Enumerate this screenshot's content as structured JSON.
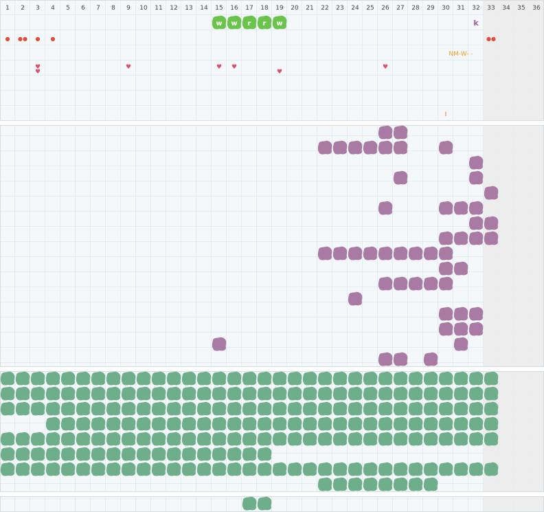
{
  "columns": [
    "1",
    "2",
    "3",
    "4",
    "5",
    "6",
    "7",
    "8",
    "9",
    "10",
    "11",
    "12",
    "13",
    "14",
    "15",
    "16",
    "17",
    "18",
    "19",
    "20",
    "21",
    "22",
    "23",
    "24",
    "25",
    "26",
    "27",
    "28",
    "29",
    "30",
    "31",
    "32",
    "33",
    "34",
    "35",
    "36"
  ],
  "active_columns": 32,
  "colors": {
    "page": "#ffffff",
    "cell_fill": "#f4f8fa",
    "grid_line": "#cfe3e8",
    "inactive_fill": "#ebebeb",
    "section_border": "#d5dde0",
    "green_tile": "#6ac34a",
    "purple_blob": "#a97aa3",
    "green_blob": "#6fae8a",
    "heart": "#dc4f68",
    "drop": "#e24a3c",
    "orange_text": "#f0a020",
    "purple_letter": "#9b5a9a",
    "bar_mark": "#e8662a"
  },
  "markers": {
    "letter_tiles": [
      {
        "col": 15,
        "text": "w"
      },
      {
        "col": 16,
        "text": "w"
      },
      {
        "col": 17,
        "text": "r"
      },
      {
        "col": 18,
        "text": "r"
      },
      {
        "col": 19,
        "text": "w"
      }
    ],
    "purple_letter": {
      "col": 32,
      "text": "k"
    },
    "drops_row2": [
      {
        "col": 1,
        "text": "●",
        "icon": "drop-icon"
      },
      {
        "col": 2,
        "text": "●●",
        "icon": "drop-icon"
      },
      {
        "col": 3,
        "text": "●",
        "icon": "dot-icon"
      },
      {
        "col": 4,
        "text": "●",
        "icon": "dot-icon"
      },
      {
        "col": 33,
        "text": "●●",
        "icon": "drop-icon"
      }
    ],
    "orange_label": {
      "col": 31,
      "text": "NM-W-  -"
    },
    "hearts": [
      {
        "col": 3,
        "sub": 0
      },
      {
        "col": 3,
        "sub": 1
      },
      {
        "col": 9,
        "sub": 0
      },
      {
        "col": 15,
        "sub": 0
      },
      {
        "col": 16,
        "sub": 0
      },
      {
        "col": 19,
        "sub": 1
      },
      {
        "col": 26,
        "sub": 0
      }
    ],
    "tick": {
      "col": 30,
      "text": "I"
    }
  },
  "purple_blobs": [
    [
      26,
      27
    ],
    [
      22,
      23,
      24,
      25,
      26,
      27,
      30
    ],
    [
      32
    ],
    [
      27,
      32
    ],
    [
      33
    ],
    [
      26,
      30,
      31,
      32
    ],
    [
      32,
      33
    ],
    [
      30,
      31,
      32,
      33
    ],
    [
      22,
      23,
      24,
      25,
      26,
      27,
      28,
      29,
      30
    ],
    [
      30,
      31
    ],
    [
      26,
      27,
      28,
      29,
      30
    ],
    [
      24
    ],
    [
      30,
      31,
      32
    ],
    [
      30,
      31,
      32
    ],
    [
      15,
      31
    ],
    [
      26,
      27,
      29
    ]
  ],
  "green_blobs": [
    {
      "from": 1,
      "to": 33
    },
    {
      "from": 1,
      "to": 33
    },
    {
      "from": 1,
      "to": 33
    },
    {
      "from": 4,
      "to": 33
    },
    {
      "from": 1,
      "to": 33
    },
    {
      "from": 1,
      "to": 18
    },
    {
      "from": 1,
      "to": 33
    },
    {
      "from": 22,
      "to": 29
    }
  ],
  "bottom_blobs": [
    17,
    18
  ]
}
